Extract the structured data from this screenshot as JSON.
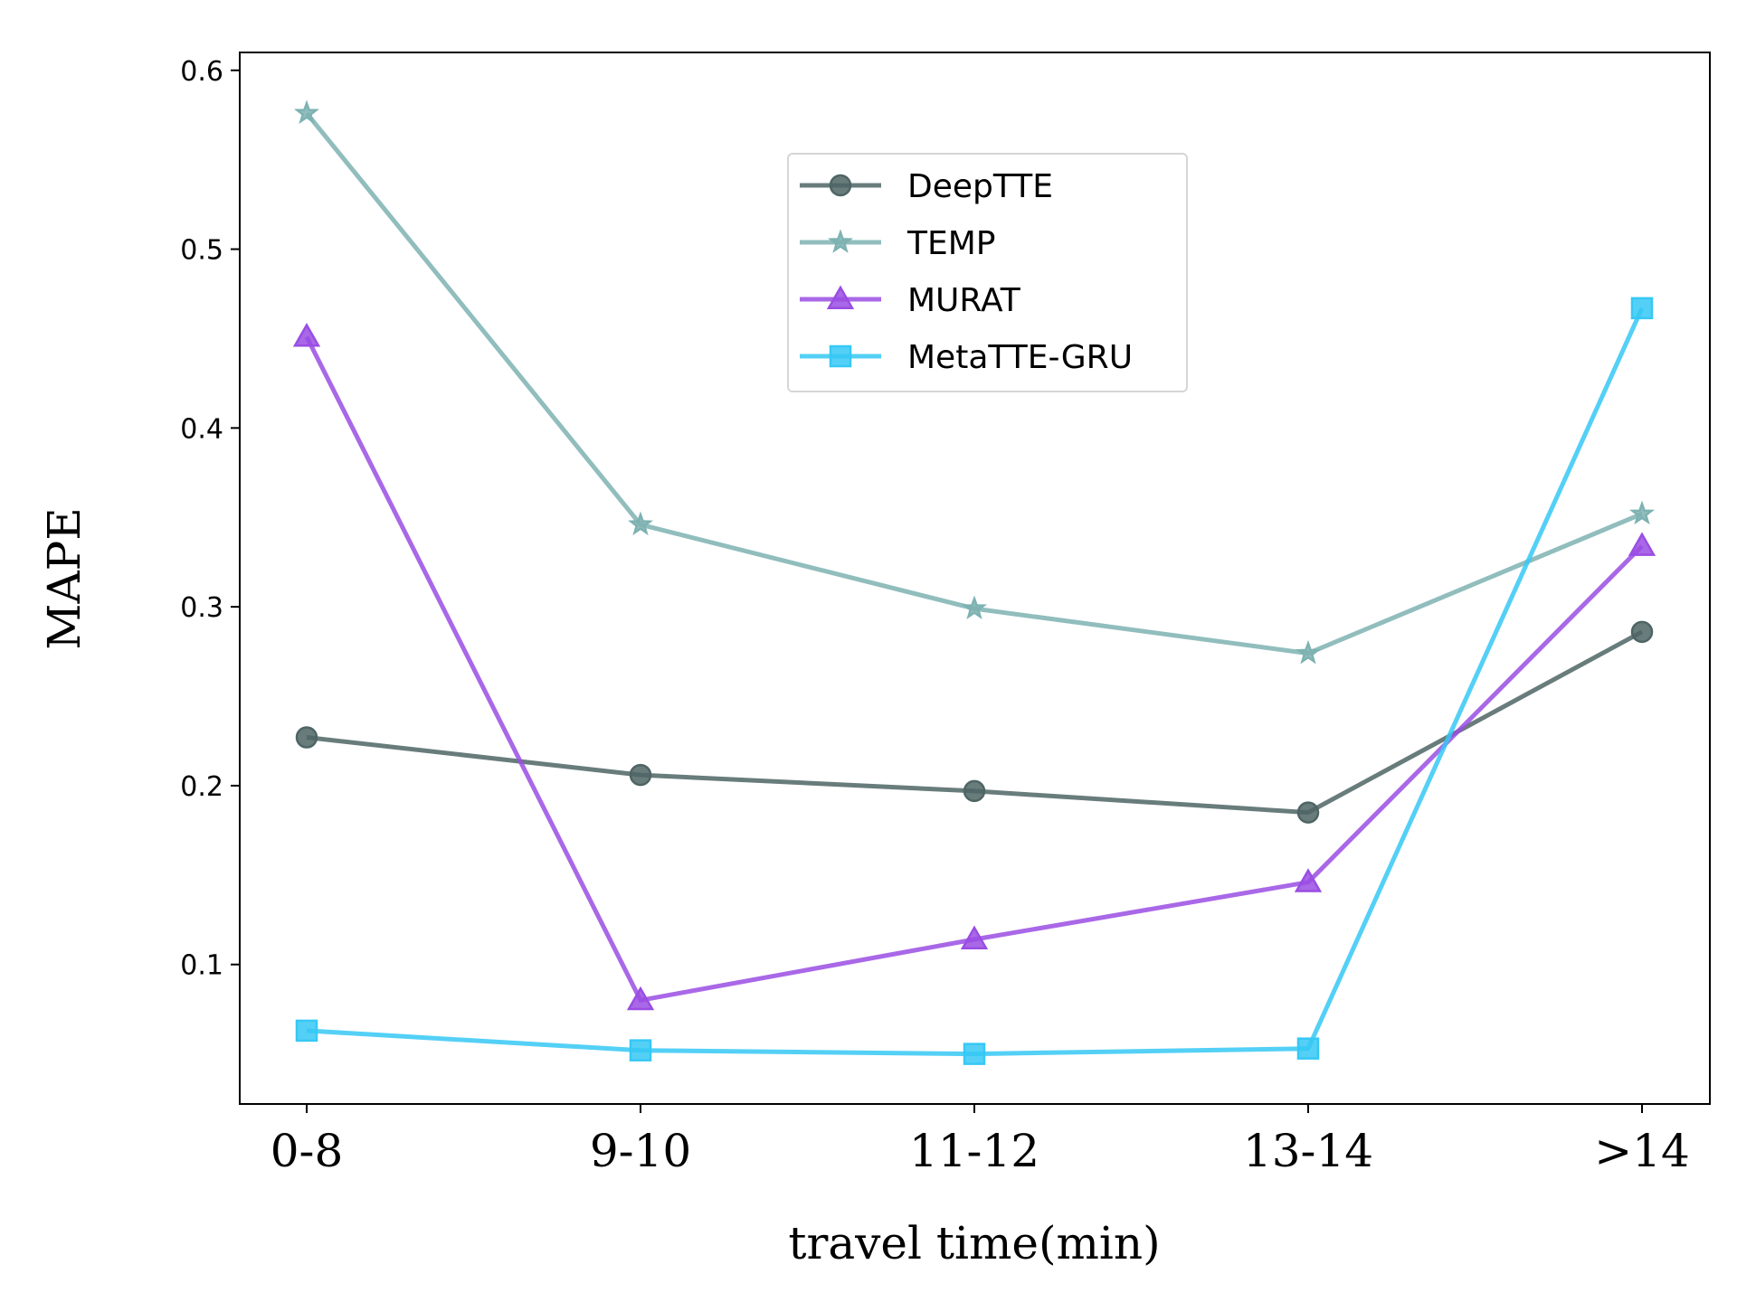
{
  "chart_data": {
    "type": "line",
    "title": "",
    "xlabel": "travel time(min)",
    "ylabel": "MAPE",
    "categories": [
      "0-8",
      "9-10",
      "11-12",
      "13-14",
      ">14"
    ],
    "ylim": [
      0.022,
      0.61
    ],
    "yticks": [
      "0.1",
      "0.2",
      "0.3",
      "0.4",
      "0.5",
      "0.6"
    ],
    "grid": false,
    "legend_position": "upper-center",
    "series": [
      {
        "name": "DeepTTE",
        "values": [
          0.227,
          0.206,
          0.197,
          0.185,
          0.286
        ],
        "color": "#4f6565",
        "marker": "circle"
      },
      {
        "name": "TEMP",
        "values": [
          0.576,
          0.346,
          0.299,
          0.274,
          0.352
        ],
        "color": "#7eb2b2",
        "marker": "star"
      },
      {
        "name": "MURAT",
        "values": [
          0.451,
          0.08,
          0.114,
          0.146,
          0.334
        ],
        "color": "#9a4de3",
        "marker": "triangle"
      },
      {
        "name": "MetaTTE-GRU",
        "values": [
          0.063,
          0.052,
          0.05,
          0.053,
          0.467
        ],
        "color": "#36c8f5",
        "marker": "square"
      }
    ]
  }
}
